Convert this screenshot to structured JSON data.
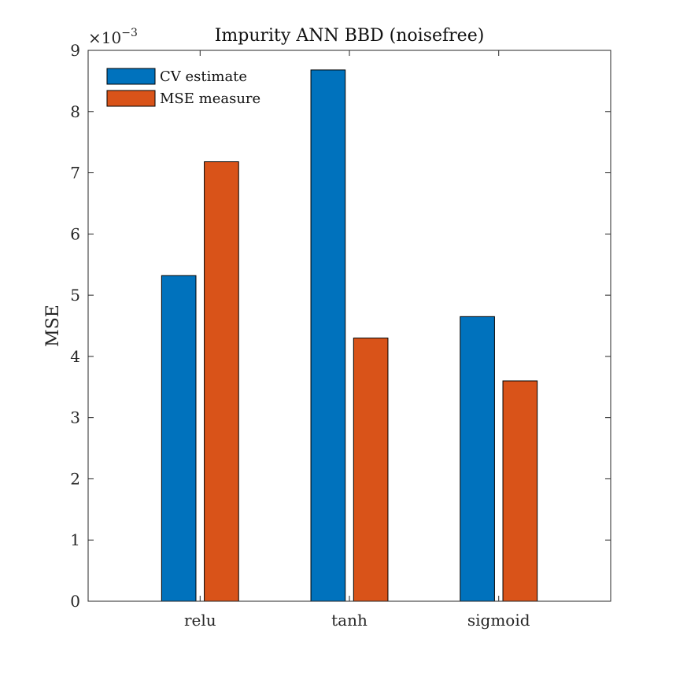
{
  "chart_data": {
    "type": "bar",
    "title": "Impurity ANN BBD (noisefree)",
    "xlabel": "",
    "ylabel": "MSE",
    "y_exponent_label": "×10",
    "y_exponent_power": "−3",
    "categories": [
      "relu",
      "tanh",
      "sigmoid"
    ],
    "series": [
      {
        "name": "CV estimate",
        "color": "#0072BD",
        "values": [
          0.00532,
          0.00868,
          0.00465
        ]
      },
      {
        "name": "MSE measure",
        "color": "#D95319",
        "values": [
          0.00718,
          0.0043,
          0.0036
        ]
      }
    ],
    "ylim": [
      0,
      0.009
    ],
    "yticks": [
      0,
      0.001,
      0.002,
      0.003,
      0.004,
      0.005,
      0.006,
      0.007,
      0.008,
      0.009
    ],
    "ytick_labels": [
      "0",
      "1",
      "2",
      "3",
      "4",
      "5",
      "6",
      "7",
      "8",
      "9"
    ],
    "grid": false,
    "legend_position": "top-left",
    "box": true
  }
}
